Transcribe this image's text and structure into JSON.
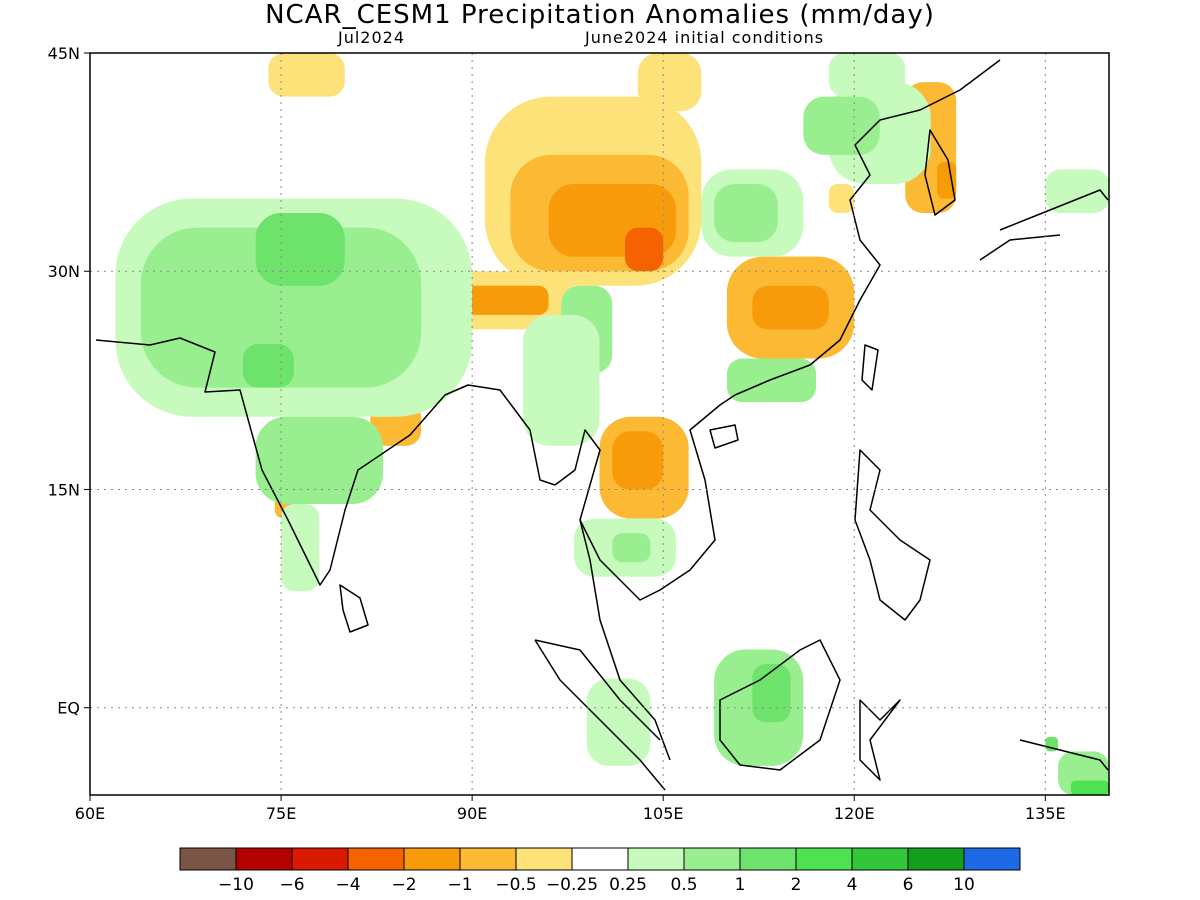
{
  "header": {
    "title": "NCAR_CESM1 Precipitation Anomalies (mm/day)",
    "month": "Jul2024",
    "init": "June2024 initial conditions"
  },
  "map": {
    "lon_range": [
      60,
      140
    ],
    "lat_range": [
      -6,
      45
    ],
    "lat_ticks": [
      {
        "lat": 45,
        "label": "45N"
      },
      {
        "lat": 30,
        "label": "30N"
      },
      {
        "lat": 15,
        "label": "15N"
      },
      {
        "lat": 0,
        "label": "EQ"
      }
    ],
    "lon_ticks": [
      {
        "lon": 60,
        "label": "60E"
      },
      {
        "lon": 75,
        "label": "75E"
      },
      {
        "lon": 90,
        "label": "90E"
      },
      {
        "lon": 105,
        "label": "105E"
      },
      {
        "lon": 120,
        "label": "120E"
      },
      {
        "lon": 135,
        "label": "135E"
      }
    ]
  },
  "colorbar": {
    "colors": [
      "#7a5545",
      "#b30000",
      "#d91a00",
      "#f56200",
      "#f89b0a",
      "#fbb934",
      "#fde27a",
      "#ffffff",
      "#c6fbbd",
      "#99ef8f",
      "#6ee36b",
      "#4ee250",
      "#34c63a",
      "#139f1b",
      "#1e6ae6"
    ],
    "labels": [
      "-10",
      "-6",
      "-4",
      "-2",
      "-1",
      "-0.5",
      "-0.25",
      "0.25",
      "0.5",
      "1",
      "2",
      "4",
      "6",
      "10"
    ]
  },
  "anomaly_regions": [
    {
      "level": 6,
      "lon": [
        91,
        108
      ],
      "lat": [
        29,
        42
      ]
    },
    {
      "level": 5,
      "lon": [
        93,
        107
      ],
      "lat": [
        30,
        38
      ]
    },
    {
      "level": 4,
      "lon": [
        96,
        106
      ],
      "lat": [
        31,
        36
      ]
    },
    {
      "level": 3,
      "lon": [
        102,
        105
      ],
      "lat": [
        30,
        33
      ]
    },
    {
      "level": 6,
      "lon": [
        83,
        98
      ],
      "lat": [
        26,
        30
      ]
    },
    {
      "level": 4,
      "lon": [
        85,
        96
      ],
      "lat": [
        27,
        29
      ]
    },
    {
      "level": 2,
      "lon": [
        87,
        90
      ],
      "lat": [
        27,
        28.5
      ]
    },
    {
      "level": 1,
      "lon": [
        88,
        89.5
      ],
      "lat": [
        27.2,
        28.2
      ]
    },
    {
      "level": 5,
      "lon": [
        79,
        85
      ],
      "lat": [
        25.5,
        28.5
      ]
    },
    {
      "level": 5,
      "lon": [
        110,
        120
      ],
      "lat": [
        24,
        31
      ]
    },
    {
      "level": 4,
      "lon": [
        112,
        118
      ],
      "lat": [
        26,
        29
      ]
    },
    {
      "level": 5,
      "lon": [
        100,
        107
      ],
      "lat": [
        13,
        20
      ]
    },
    {
      "level": 4,
      "lon": [
        101,
        105
      ],
      "lat": [
        15,
        19
      ]
    },
    {
      "level": 5,
      "lon": [
        82,
        86
      ],
      "lat": [
        18,
        21
      ]
    },
    {
      "level": 5,
      "lon": [
        74.5,
        76.5
      ],
      "lat": [
        13,
        16
      ]
    },
    {
      "level": 5,
      "lon": [
        124,
        128
      ],
      "lat": [
        34,
        43
      ]
    },
    {
      "level": 4,
      "lon": [
        126.5,
        128
      ],
      "lat": [
        35,
        37.5
      ]
    },
    {
      "level": 6,
      "lon": [
        74,
        80
      ],
      "lat": [
        42,
        45
      ]
    },
    {
      "level": 6,
      "lon": [
        103,
        108
      ],
      "lat": [
        41,
        45
      ]
    },
    {
      "level": 6,
      "lon": [
        118,
        120
      ],
      "lat": [
        34,
        36
      ]
    },
    {
      "level": 8,
      "lon": [
        62,
        90
      ],
      "lat": [
        20,
        35
      ]
    },
    {
      "level": 9,
      "lon": [
        64,
        86
      ],
      "lat": [
        22,
        33
      ]
    },
    {
      "level": 10,
      "lon": [
        73,
        80
      ],
      "lat": [
        29,
        34
      ]
    },
    {
      "level": 10,
      "lon": [
        72,
        76
      ],
      "lat": [
        22,
        25
      ]
    },
    {
      "level": 9,
      "lon": [
        73,
        83
      ],
      "lat": [
        14,
        20
      ]
    },
    {
      "level": 8,
      "lon": [
        75,
        78
      ],
      "lat": [
        8,
        14
      ]
    },
    {
      "level": 9,
      "lon": [
        97,
        101
      ],
      "lat": [
        23,
        29
      ]
    },
    {
      "level": 8,
      "lon": [
        94,
        100
      ],
      "lat": [
        18,
        27
      ]
    },
    {
      "level": 8,
      "lon": [
        108,
        116
      ],
      "lat": [
        31,
        37
      ]
    },
    {
      "level": 9,
      "lon": [
        109,
        114
      ],
      "lat": [
        32,
        36
      ]
    },
    {
      "level": 9,
      "lon": [
        110,
        117
      ],
      "lat": [
        21,
        24
      ]
    },
    {
      "level": 8,
      "lon": [
        118,
        126
      ],
      "lat": [
        36,
        43
      ]
    },
    {
      "level": 9,
      "lon": [
        116,
        122
      ],
      "lat": [
        38,
        42
      ]
    },
    {
      "level": 8,
      "lon": [
        118,
        124
      ],
      "lat": [
        42,
        45
      ]
    },
    {
      "level": 8,
      "lon": [
        98,
        106
      ],
      "lat": [
        9,
        13
      ]
    },
    {
      "level": 9,
      "lon": [
        101,
        104
      ],
      "lat": [
        10,
        12
      ]
    },
    {
      "level": 9,
      "lon": [
        109,
        116
      ],
      "lat": [
        -4,
        4
      ]
    },
    {
      "level": 10,
      "lon": [
        112,
        115
      ],
      "lat": [
        -1,
        3
      ]
    },
    {
      "level": 8,
      "lon": [
        99,
        104
      ],
      "lat": [
        -4,
        2
      ]
    },
    {
      "level": 9,
      "lon": [
        136,
        140
      ],
      "lat": [
        -6,
        -3
      ]
    },
    {
      "level": 11,
      "lon": [
        137,
        140
      ],
      "lat": [
        -6,
        -5
      ]
    },
    {
      "level": 8,
      "lon": [
        135,
        140
      ],
      "lat": [
        34,
        37
      ]
    },
    {
      "level": 10,
      "lon": [
        135,
        136
      ],
      "lat": [
        -3,
        -2
      ]
    }
  ]
}
